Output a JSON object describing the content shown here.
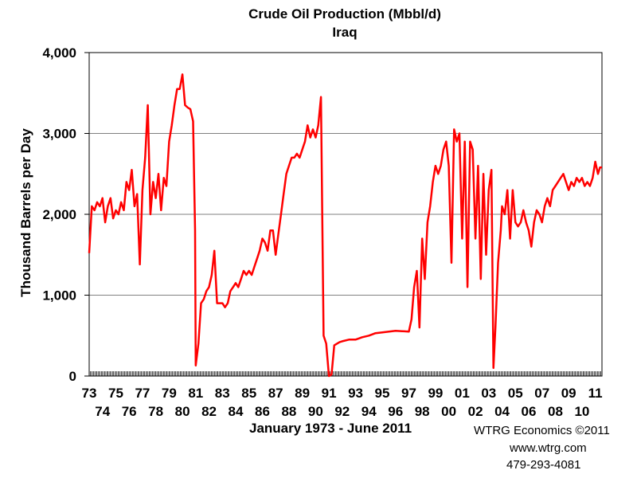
{
  "chart_data": {
    "type": "line",
    "title": "Crude Oil Production (Mbbl/d)",
    "subtitle": "Iraq",
    "ylabel": "Thousand Barrels per Day",
    "xlabel": "January 1973 - June 2011",
    "ylim": [
      0,
      4000
    ],
    "xlim": [
      1973.0,
      2011.5
    ],
    "y_ticks": [
      "0",
      "1,000",
      "2,000",
      "3,000",
      "4,000"
    ],
    "y_tick_values": [
      0,
      1000,
      2000,
      3000,
      4000
    ],
    "x_ticks_upper": [
      "73",
      "75",
      "77",
      "79",
      "81",
      "83",
      "85",
      "87",
      "89",
      "91",
      "93",
      "95",
      "97",
      "99",
      "01",
      "03",
      "05",
      "07",
      "09",
      "11"
    ],
    "x_ticks_lower": [
      "74",
      "76",
      "78",
      "80",
      "82",
      "84",
      "86",
      "88",
      "90",
      "92",
      "94",
      "96",
      "98",
      "00",
      "02",
      "04",
      "06",
      "08",
      "10"
    ],
    "grid": true,
    "line_color": "#ff0000",
    "series": [
      {
        "values": [
          [
            1973.0,
            1520
          ],
          [
            1973.2,
            2100
          ],
          [
            1973.4,
            2050
          ],
          [
            1973.6,
            2150
          ],
          [
            1973.8,
            2100
          ],
          [
            1974.0,
            2200
          ],
          [
            1974.2,
            1900
          ],
          [
            1974.4,
            2100
          ],
          [
            1974.6,
            2200
          ],
          [
            1974.8,
            1950
          ],
          [
            1975.0,
            2050
          ],
          [
            1975.2,
            2000
          ],
          [
            1975.4,
            2150
          ],
          [
            1975.6,
            2050
          ],
          [
            1975.8,
            2400
          ],
          [
            1976.0,
            2300
          ],
          [
            1976.2,
            2550
          ],
          [
            1976.4,
            2100
          ],
          [
            1976.6,
            2250
          ],
          [
            1976.8,
            1380
          ],
          [
            1977.0,
            2300
          ],
          [
            1977.2,
            2700
          ],
          [
            1977.4,
            3350
          ],
          [
            1977.6,
            2000
          ],
          [
            1977.8,
            2400
          ],
          [
            1978.0,
            2200
          ],
          [
            1978.2,
            2500
          ],
          [
            1978.4,
            2050
          ],
          [
            1978.6,
            2450
          ],
          [
            1978.8,
            2350
          ],
          [
            1979.0,
            2900
          ],
          [
            1979.2,
            3100
          ],
          [
            1979.4,
            3350
          ],
          [
            1979.6,
            3550
          ],
          [
            1979.8,
            3550
          ],
          [
            1980.0,
            3730
          ],
          [
            1980.2,
            3350
          ],
          [
            1980.4,
            3320
          ],
          [
            1980.6,
            3300
          ],
          [
            1980.8,
            3150
          ],
          [
            1980.95,
            1800
          ],
          [
            1981.0,
            130
          ],
          [
            1981.2,
            400
          ],
          [
            1981.4,
            900
          ],
          [
            1981.6,
            950
          ],
          [
            1981.8,
            1050
          ],
          [
            1982.0,
            1100
          ],
          [
            1982.2,
            1250
          ],
          [
            1982.4,
            1550
          ],
          [
            1982.6,
            900
          ],
          [
            1982.8,
            900
          ],
          [
            1983.0,
            900
          ],
          [
            1983.2,
            850
          ],
          [
            1983.4,
            900
          ],
          [
            1983.6,
            1050
          ],
          [
            1983.8,
            1100
          ],
          [
            1984.0,
            1150
          ],
          [
            1984.2,
            1100
          ],
          [
            1984.4,
            1200
          ],
          [
            1984.6,
            1300
          ],
          [
            1984.8,
            1250
          ],
          [
            1985.0,
            1300
          ],
          [
            1985.2,
            1250
          ],
          [
            1985.4,
            1350
          ],
          [
            1985.6,
            1450
          ],
          [
            1985.8,
            1550
          ],
          [
            1986.0,
            1700
          ],
          [
            1986.2,
            1650
          ],
          [
            1986.4,
            1550
          ],
          [
            1986.6,
            1800
          ],
          [
            1986.8,
            1800
          ],
          [
            1987.0,
            1500
          ],
          [
            1987.2,
            1750
          ],
          [
            1987.4,
            2000
          ],
          [
            1987.6,
            2250
          ],
          [
            1987.8,
            2500
          ],
          [
            1988.0,
            2600
          ],
          [
            1988.2,
            2700
          ],
          [
            1988.4,
            2700
          ],
          [
            1988.6,
            2750
          ],
          [
            1988.8,
            2700
          ],
          [
            1989.0,
            2800
          ],
          [
            1989.2,
            2900
          ],
          [
            1989.4,
            3100
          ],
          [
            1989.6,
            2950
          ],
          [
            1989.8,
            3050
          ],
          [
            1990.0,
            2950
          ],
          [
            1990.2,
            3100
          ],
          [
            1990.4,
            3450
          ],
          [
            1990.5,
            2000
          ],
          [
            1990.6,
            500
          ],
          [
            1990.8,
            400
          ],
          [
            1991.0,
            0
          ],
          [
            1991.2,
            20
          ],
          [
            1991.4,
            380
          ],
          [
            1991.6,
            400
          ],
          [
            1991.8,
            420
          ],
          [
            1992.0,
            430
          ],
          [
            1992.5,
            450
          ],
          [
            1993.0,
            450
          ],
          [
            1993.5,
            480
          ],
          [
            1994.0,
            500
          ],
          [
            1994.5,
            530
          ],
          [
            1995.0,
            540
          ],
          [
            1995.5,
            550
          ],
          [
            1996.0,
            560
          ],
          [
            1996.5,
            555
          ],
          [
            1997.0,
            550
          ],
          [
            1997.2,
            700
          ],
          [
            1997.4,
            1100
          ],
          [
            1997.6,
            1300
          ],
          [
            1997.8,
            600
          ],
          [
            1998.0,
            1700
          ],
          [
            1998.2,
            1200
          ],
          [
            1998.4,
            1900
          ],
          [
            1998.6,
            2100
          ],
          [
            1998.8,
            2400
          ],
          [
            1999.0,
            2600
          ],
          [
            1999.2,
            2500
          ],
          [
            1999.4,
            2600
          ],
          [
            1999.6,
            2800
          ],
          [
            1999.8,
            2900
          ],
          [
            2000.0,
            2600
          ],
          [
            2000.2,
            1400
          ],
          [
            2000.4,
            3050
          ],
          [
            2000.6,
            2900
          ],
          [
            2000.8,
            3000
          ],
          [
            2001.0,
            1700
          ],
          [
            2001.2,
            2900
          ],
          [
            2001.4,
            1100
          ],
          [
            2001.6,
            2900
          ],
          [
            2001.8,
            2800
          ],
          [
            2002.0,
            1700
          ],
          [
            2002.2,
            2600
          ],
          [
            2002.4,
            1200
          ],
          [
            2002.6,
            2500
          ],
          [
            2002.8,
            1500
          ],
          [
            2003.0,
            2300
          ],
          [
            2003.2,
            2550
          ],
          [
            2003.35,
            100
          ],
          [
            2003.5,
            600
          ],
          [
            2003.7,
            1400
          ],
          [
            2003.9,
            1800
          ],
          [
            2004.0,
            2100
          ],
          [
            2004.2,
            2000
          ],
          [
            2004.4,
            2300
          ],
          [
            2004.6,
            1700
          ],
          [
            2004.8,
            2300
          ],
          [
            2005.0,
            1900
          ],
          [
            2005.2,
            1850
          ],
          [
            2005.4,
            1900
          ],
          [
            2005.6,
            2050
          ],
          [
            2005.8,
            1900
          ],
          [
            2006.0,
            1800
          ],
          [
            2006.2,
            1600
          ],
          [
            2006.4,
            1900
          ],
          [
            2006.6,
            2050
          ],
          [
            2006.8,
            2000
          ],
          [
            2007.0,
            1900
          ],
          [
            2007.2,
            2100
          ],
          [
            2007.4,
            2200
          ],
          [
            2007.6,
            2100
          ],
          [
            2007.8,
            2300
          ],
          [
            2008.0,
            2350
          ],
          [
            2008.2,
            2400
          ],
          [
            2008.4,
            2450
          ],
          [
            2008.6,
            2500
          ],
          [
            2008.8,
            2400
          ],
          [
            2009.0,
            2300
          ],
          [
            2009.2,
            2400
          ],
          [
            2009.4,
            2350
          ],
          [
            2009.6,
            2450
          ],
          [
            2009.8,
            2400
          ],
          [
            2010.0,
            2450
          ],
          [
            2010.2,
            2350
          ],
          [
            2010.4,
            2400
          ],
          [
            2010.6,
            2350
          ],
          [
            2010.8,
            2450
          ],
          [
            2011.0,
            2650
          ],
          [
            2011.2,
            2500
          ],
          [
            2011.35,
            2580
          ],
          [
            2011.5,
            2580
          ]
        ]
      }
    ]
  },
  "credits": {
    "org": "WTRG Economics  ©2011",
    "url": "www.wtrg.com",
    "phone": "479-293-4081"
  }
}
